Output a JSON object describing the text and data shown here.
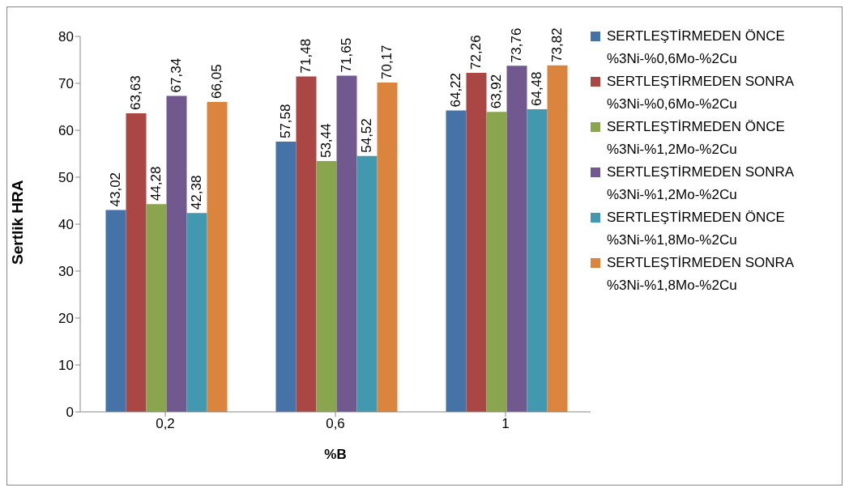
{
  "chart_data": {
    "type": "bar",
    "xlabel": "%B",
    "ylabel": "Sertlik HRA",
    "categories": [
      "0,2",
      "0,6",
      "1"
    ],
    "ylim": [
      0,
      80
    ],
    "yticks": [
      0,
      10,
      20,
      30,
      40,
      50,
      60,
      70,
      80
    ],
    "legend": "right",
    "series": [
      {
        "name": "SERTLEŞTİRMEDEN ÖNCE %3Ni-%0,6Mo-%2Cu",
        "color": "#4572a7",
        "values": [
          43.02,
          57.58,
          64.22
        ],
        "value_labels": [
          "43,02",
          "57,58",
          "64,22"
        ]
      },
      {
        "name": "SERTLEŞTİRMEDEN SONRA %3Ni-%0,6Mo-%2Cu",
        "color": "#aa4643",
        "values": [
          63.63,
          71.48,
          72.26
        ],
        "value_labels": [
          "63,63",
          "71,48",
          "72,26"
        ]
      },
      {
        "name": "SERTLEŞTİRMEDEN ÖNCE %3Ni-%1,2Mo-%2Cu",
        "color": "#89a54e",
        "values": [
          44.28,
          53.44,
          63.92
        ],
        "value_labels": [
          "44,28",
          "53,44",
          "63,92"
        ]
      },
      {
        "name": "SERTLEŞTİRMEDEN SONRA %3Ni-%1,2Mo-%2Cu",
        "color": "#71588f",
        "values": [
          67.34,
          71.65,
          73.76
        ],
        "value_labels": [
          "67,34",
          "71,65",
          "73,76"
        ]
      },
      {
        "name": "SERTLEŞTİRMEDEN ÖNCE %3Ni-%1,8Mo-%2Cu",
        "color": "#4198af",
        "values": [
          42.38,
          54.52,
          64.48
        ],
        "value_labels": [
          "42,38",
          "54,52",
          "64,48"
        ]
      },
      {
        "name": "SERTLEŞTİRMEDEN SONRA %3Ni-%1,8Mo-%2Cu",
        "color": "#db843d",
        "values": [
          66.05,
          70.17,
          73.82
        ],
        "value_labels": [
          "66,05",
          "70,17",
          "73,82"
        ]
      }
    ]
  }
}
